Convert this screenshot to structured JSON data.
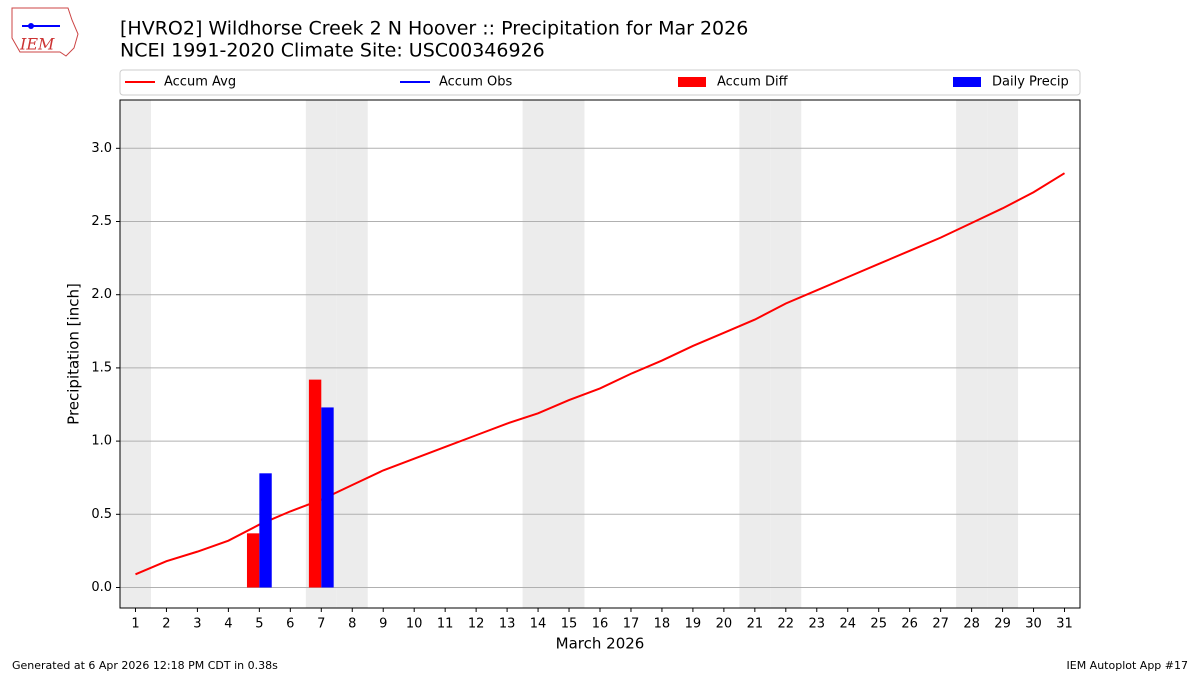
{
  "logo": "IEM",
  "footer": {
    "left": "Generated at 6 Apr 2026 12:18 PM CDT in 0.38s",
    "right": "IEM Autoplot App #17"
  },
  "chart_data": {
    "type": "bar",
    "title": "[HVRO2] Wildhorse Creek 2 N Hoover :: Precipitation for Mar 2026",
    "subtitle": "NCEI 1991-2020 Climate Site: USC00346926",
    "x_label": "March 2026",
    "y_label": "Precipitation [inch]",
    "x": [
      1,
      2,
      3,
      4,
      5,
      6,
      7,
      8,
      9,
      10,
      11,
      12,
      13,
      14,
      15,
      16,
      17,
      18,
      19,
      20,
      21,
      22,
      23,
      24,
      25,
      26,
      27,
      28,
      29,
      30,
      31
    ],
    "shaded_days": [
      1,
      7,
      8,
      14,
      15,
      21,
      22,
      28,
      29
    ],
    "shade_color": "#ececec",
    "series": [
      {
        "name": "Accum Avg",
        "type": "line",
        "color": "#ff0000",
        "values": [
          0.09,
          0.18,
          0.245,
          0.32,
          0.43,
          0.52,
          0.6,
          0.7,
          0.8,
          0.88,
          0.96,
          1.04,
          1.12,
          1.19,
          1.28,
          1.36,
          1.46,
          1.55,
          1.65,
          1.74,
          1.83,
          1.94,
          2.03,
          2.12,
          2.21,
          2.3,
          2.39,
          2.49,
          2.59,
          2.7,
          2.83
        ]
      },
      {
        "name": "Accum Obs",
        "type": "line",
        "color": "#0000ff",
        "values": [
          null,
          null,
          null,
          null,
          null,
          null,
          null,
          null,
          null,
          null,
          null,
          null,
          null,
          null,
          null,
          null,
          null,
          null,
          null,
          null,
          null,
          null,
          null,
          null,
          null,
          null,
          null,
          null,
          null,
          null,
          null
        ]
      },
      {
        "name": "Accum Diff",
        "type": "bar",
        "color": "#ff0000",
        "values": [
          null,
          null,
          null,
          null,
          0.37,
          null,
          1.42,
          null,
          null,
          null,
          null,
          null,
          null,
          null,
          null,
          null,
          null,
          null,
          null,
          null,
          null,
          null,
          null,
          null,
          null,
          null,
          null,
          null,
          null,
          null,
          null
        ]
      },
      {
        "name": "Daily Precip",
        "type": "bar",
        "color": "#0000ff",
        "values": [
          null,
          null,
          null,
          null,
          0.78,
          null,
          1.23,
          null,
          null,
          null,
          null,
          null,
          null,
          null,
          null,
          null,
          null,
          null,
          null,
          null,
          null,
          null,
          null,
          null,
          null,
          null,
          null,
          null,
          null,
          null,
          null
        ]
      }
    ],
    "xlim": [
      0.5,
      31.5
    ],
    "xticks": [
      1,
      2,
      3,
      4,
      5,
      6,
      7,
      8,
      9,
      10,
      11,
      12,
      13,
      14,
      15,
      16,
      17,
      18,
      19,
      20,
      21,
      22,
      23,
      24,
      25,
      26,
      27,
      28,
      29,
      30,
      31
    ],
    "ylim": [
      -0.14,
      3.33
    ],
    "yticks": [
      {
        "value": 0,
        "label": "0.0"
      },
      0.5,
      {
        "value": 1,
        "label": "1.0"
      },
      1.5,
      {
        "value": 2,
        "label": "2.0"
      },
      2.5,
      {
        "value": 3,
        "label": "3.0"
      }
    ],
    "grid": true
  }
}
